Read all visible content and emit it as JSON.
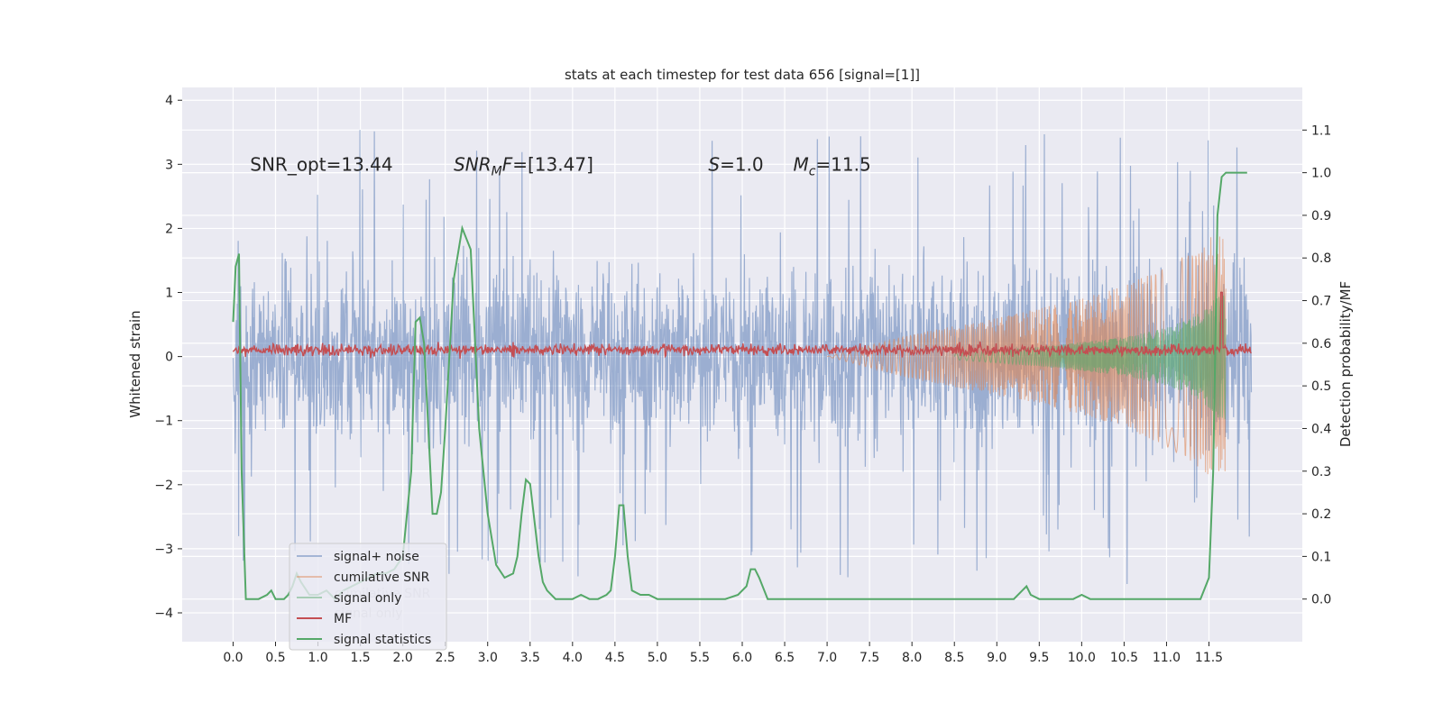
{
  "chart_data": {
    "type": "line",
    "title": "stats at each timestep for test data 656 [signal=[1]]",
    "xlabel": "",
    "ylabel": "Whitened strain",
    "ylabel_right": "Detection probability/MF",
    "xlim": [
      -0.6,
      12.6
    ],
    "ylim": [
      -4.45,
      4.2
    ],
    "ylim_right": [
      -0.1,
      1.2
    ],
    "x_ticks": [
      0.0,
      0.5,
      1.0,
      1.5,
      2.0,
      2.5,
      3.0,
      3.5,
      4.0,
      4.5,
      5.0,
      5.5,
      6.0,
      6.5,
      7.0,
      7.5,
      8.0,
      8.5,
      9.0,
      9.5,
      10.0,
      10.5,
      11.0,
      11.5
    ],
    "x_tick_labels": [
      "0.0",
      "0.5",
      "1.0",
      "1.5",
      "2.0",
      "2.5",
      "3.0",
      "3.5",
      "4.0",
      "4.5",
      "5.0",
      "5.5",
      "6.0",
      "6.5",
      "7.0",
      "7.5",
      "8.0",
      "8.5",
      "9.0",
      "9.5",
      "10.0",
      "10.5",
      "11.0",
      "11.5"
    ],
    "y_ticks": [
      4,
      3,
      2,
      1,
      0,
      -1,
      -2,
      -3,
      -4
    ],
    "y_tick_labels": [
      "4",
      "3",
      "2",
      "1",
      "0",
      "−1",
      "−2",
      "−3",
      "−4"
    ],
    "y_ticks_right": [
      1.1,
      1.0,
      0.9,
      0.8,
      0.7,
      0.6,
      0.5,
      0.4,
      0.3,
      0.2,
      0.1,
      0.0
    ],
    "y_tick_labels_right": [
      "1.1",
      "1.0",
      "0.9",
      "0.8",
      "0.7",
      "0.6",
      "0.5",
      "0.4",
      "0.3",
      "0.2",
      "0.1",
      "0.0"
    ],
    "grid": true,
    "legend_position": "lower-left",
    "annotations": [
      {
        "text": "SNR_opt=13.44",
        "x": 0.2,
        "y": 3.0
      },
      {
        "text": "SNR_MF=[13.47]",
        "x": 2.6,
        "y": 3.0
      },
      {
        "text": "S=1.0",
        "x": 5.6,
        "y": 3.0
      },
      {
        "text": "M_c=11.5",
        "x": 6.6,
        "y": 3.0
      }
    ],
    "legend_entries": [
      "signal+ noise",
      "cumilative SNR",
      "signal only",
      "MF",
      "signal statistics"
    ],
    "legend_ghost_entries": [
      "cumilative SNR",
      "signal only"
    ],
    "series": [
      {
        "name": "signal+ noise",
        "color": "#4c72b0",
        "axis": "left",
        "style": "dense-noise",
        "x_range": [
          0.0,
          12.0
        ],
        "typical_amplitude": 1.7,
        "peak_max": 3.85,
        "peak_min": -4.1
      },
      {
        "name": "cumilative SNR",
        "color": "#dd8452",
        "axis": "left",
        "style": "chirp-envelope",
        "x": [
          7.0,
          8.0,
          9.0,
          10.0,
          10.5,
          11.0,
          11.3,
          11.5,
          11.6,
          11.7
        ],
        "envelope": [
          0.0,
          0.35,
          0.6,
          0.9,
          1.1,
          1.4,
          1.65,
          1.85,
          1.9,
          1.8
        ]
      },
      {
        "name": "signal only",
        "color": "#55a868",
        "axis": "left",
        "style": "chirp-envelope",
        "x": [
          8.5,
          9.5,
          10.5,
          11.0,
          11.3,
          11.5,
          11.6,
          11.7
        ],
        "envelope": [
          0.05,
          0.15,
          0.3,
          0.45,
          0.6,
          0.8,
          0.95,
          1.0
        ]
      },
      {
        "name": "MF",
        "color": "#c44e52",
        "axis": "left",
        "style": "noisy-band",
        "x_range": [
          0.0,
          12.0
        ],
        "center": 0.1,
        "amplitude": 0.12,
        "spike": {
          "x": 11.65,
          "y": 1.0
        }
      },
      {
        "name": "signal statistics",
        "color": "#55a868",
        "axis": "right",
        "style": "line",
        "x": [
          0.0,
          0.03,
          0.07,
          0.1,
          0.15,
          0.2,
          0.3,
          0.4,
          0.45,
          0.5,
          0.6,
          0.65,
          0.7,
          0.75,
          0.8,
          0.9,
          1.0,
          1.1,
          1.2,
          1.3,
          1.4,
          1.5,
          1.6,
          1.7,
          1.8,
          1.9,
          2.0,
          2.1,
          2.15,
          2.2,
          2.25,
          2.3,
          2.35,
          2.4,
          2.45,
          2.5,
          2.6,
          2.7,
          2.8,
          2.9,
          3.0,
          3.1,
          3.2,
          3.3,
          3.35,
          3.4,
          3.45,
          3.5,
          3.6,
          3.65,
          3.7,
          3.8,
          4.0,
          4.1,
          4.2,
          4.3,
          4.4,
          4.45,
          4.5,
          4.55,
          4.6,
          4.65,
          4.7,
          4.8,
          4.9,
          5.0,
          5.2,
          5.5,
          5.8,
          5.95,
          6.05,
          6.1,
          6.15,
          6.2,
          6.3,
          6.4,
          6.6,
          6.8,
          7.0,
          7.5,
          8.0,
          8.5,
          9.0,
          9.2,
          9.3,
          9.35,
          9.4,
          9.5,
          9.7,
          9.9,
          10.0,
          10.1,
          10.3,
          10.6,
          10.8,
          11.0,
          11.2,
          11.4,
          11.5,
          11.55,
          11.6,
          11.65,
          11.7,
          11.8,
          11.95
        ],
        "y": [
          0.65,
          0.78,
          0.81,
          0.3,
          0.0,
          0.0,
          0.0,
          0.01,
          0.02,
          0.0,
          0.0,
          0.01,
          0.03,
          0.06,
          0.04,
          0.01,
          0.01,
          0.02,
          0.0,
          0.02,
          0.03,
          0.04,
          0.05,
          0.06,
          0.06,
          0.07,
          0.1,
          0.3,
          0.65,
          0.66,
          0.6,
          0.4,
          0.2,
          0.2,
          0.25,
          0.4,
          0.75,
          0.87,
          0.82,
          0.4,
          0.2,
          0.08,
          0.05,
          0.06,
          0.1,
          0.2,
          0.28,
          0.27,
          0.1,
          0.04,
          0.02,
          0.0,
          0.0,
          0.01,
          0.0,
          0.0,
          0.01,
          0.02,
          0.1,
          0.22,
          0.22,
          0.1,
          0.02,
          0.01,
          0.01,
          0.0,
          0.0,
          0.0,
          0.0,
          0.01,
          0.03,
          0.07,
          0.07,
          0.05,
          0.0,
          0.0,
          0.0,
          0.0,
          0.0,
          0.0,
          0.0,
          0.0,
          0.0,
          0.0,
          0.02,
          0.03,
          0.01,
          0.0,
          0.0,
          0.0,
          0.01,
          0.0,
          0.0,
          0.0,
          0.0,
          0.0,
          0.0,
          0.0,
          0.05,
          0.3,
          0.9,
          0.99,
          1.0,
          1.0,
          1.0
        ]
      }
    ]
  }
}
